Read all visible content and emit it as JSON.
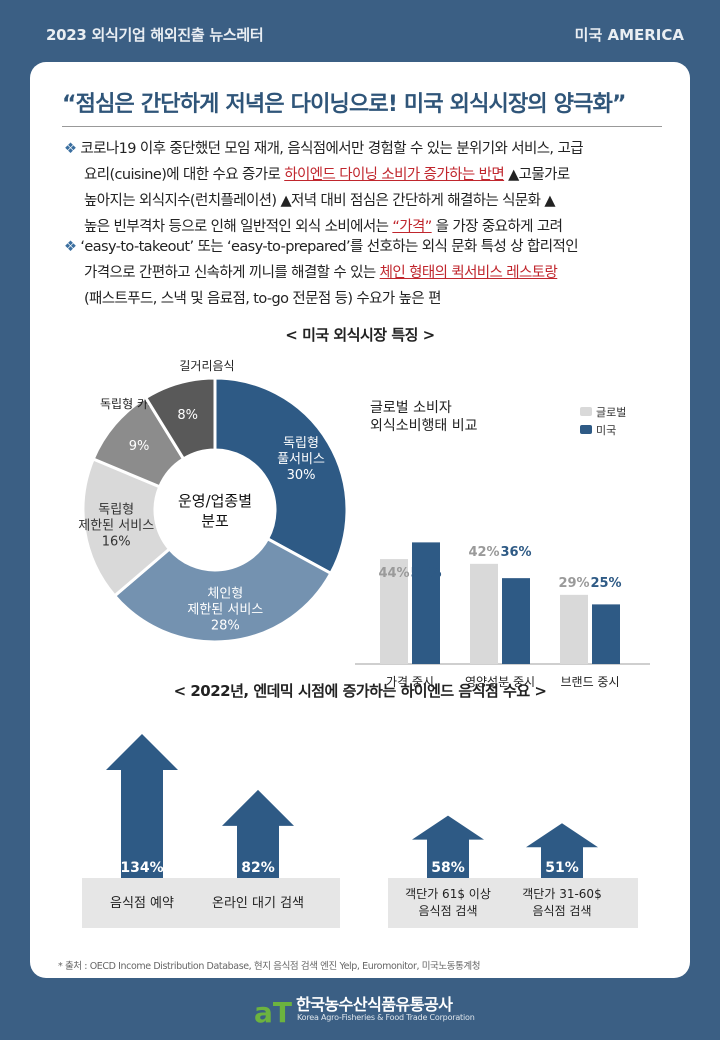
{
  "header": {
    "left": "2023 외식기업 해외진출 뉴스레터",
    "right": "미국 AMERICA"
  },
  "headline": "“점심은 간단하게 저녁은 다이닝으로! 미국 외식시장의 양극화”",
  "bullets": [
    {
      "mark": "❖",
      "line1_a": "코로나19 이후 중단했던 모임 재개, 음식점에서만 경험할 수 있는 분위기와 서비스, 고급",
      "line2_a": "요리(cuisine)에 대한 수요 증가로 ",
      "line2_hl": "하이엔드 다이닝 소비가 증가하는 반면",
      "line2_b": " ▲고물가로",
      "line3_a": "높아지는 외식지수(런치플레이션) ▲저녁 대비 점심은 간단하게 해결하는 식문화 ▲",
      "line4_a": "높은 빈부격차 등으로 인해 일반적인 외식 소비에서는 ",
      "line4_hl": "“가격”",
      "line4_b": " 을 가장 중요하게 고려"
    },
    {
      "mark": "❖",
      "line1_a": "‘easy-to-takeout’ 또는 ‘easy-to-prepared’를 선호하는 외식 문화 특성 상 합리적인",
      "line2_a": "가격으로 간편하고 신속하게 끼니를 해결할 수 있는 ",
      "line2_hl": "체인 형태의 퀵서비스 레스토랑",
      "line3_a": "(패스트푸드, 스낵 및 음료점, to-go 전문점 등) 수요가 높은 편"
    }
  ],
  "section1_title": "< 미국 외식시장 특징 >",
  "donut": {
    "center_line1": "운영/업종별",
    "center_line2": "분포",
    "outer_label": "길거리음식",
    "slices": [
      {
        "key": "indep_full",
        "line1": "독립형",
        "line2": "풀서비스",
        "value_label": "30%",
        "value": 30,
        "color": "#2e5a85",
        "text_color": "#ffffff"
      },
      {
        "key": "chain_limited",
        "line1": "체인형",
        "line2": "제한된 서비스",
        "value_label": "28%",
        "value": 28,
        "color": "#7492b0",
        "text_color": "#ffffff"
      },
      {
        "key": "indep_limited",
        "line1": "독립형",
        "line2": "제한된 서비스",
        "value_label": "16%",
        "value": 16,
        "color": "#d9d9d9",
        "text_color": "#333333"
      },
      {
        "key": "indep_cafe",
        "line1": "독립형 카페",
        "line2": "",
        "value_label": "9%",
        "value": 9,
        "color": "#8c8c8c",
        "text_color": "#ffffff"
      },
      {
        "key": "street",
        "line1": "",
        "line2": "",
        "value_label": "8%",
        "value": 8,
        "color": "#595959",
        "text_color": "#ffffff"
      }
    ]
  },
  "chart_data": {
    "type": "bar",
    "title": "글로벌 소비자 외식소비행태 비교",
    "title_line1": "글로벌 소비자",
    "title_line2": "외식소비행태 비교",
    "categories": [
      "가격 중시",
      "영양성분 중시",
      "브랜드 중시"
    ],
    "series": [
      {
        "name": "글로벌",
        "values": [
          44,
          42,
          29
        ],
        "labels": [
          "44%",
          "42%",
          "29%"
        ],
        "color": "#d9d9d9",
        "label_color": "#9a9a9a"
      },
      {
        "name": "미국",
        "values": [
          51,
          36,
          25
        ],
        "labels": [
          "51%",
          "36%",
          "25%"
        ],
        "color": "#2e5a85",
        "label_color": "#2e5a85"
      }
    ],
    "ylim": [
      0,
      60
    ],
    "legend_position": "top-right",
    "grid": false
  },
  "section2_title": "< 2022년, 엔데믹 시점에 증가하는 하이엔드 음식점 수요 >",
  "arrows": [
    {
      "key": "reservation",
      "value": 134,
      "label": "134%",
      "caption1": "음식점 예약",
      "caption2": ""
    },
    {
      "key": "waitlist",
      "value": 82,
      "label": "82%",
      "caption1": "온라인 대기 검색",
      "caption2": ""
    },
    {
      "key": "over61",
      "value": 58,
      "label": "58%",
      "caption1": "객단가 61$ 이상",
      "caption2": "음식점 검색"
    },
    {
      "key": "31to60",
      "value": 51,
      "label": "51%",
      "caption1": "객단가 31-60$",
      "caption2": "음식점 검색"
    }
  ],
  "source": "* 출처 : OECD Income Distribution Database, 현지 음식점 검색 엔진 Yelp, Euromonitor, 미국노동통계청",
  "logo": {
    "mark": "aT",
    "name_ko": "한국농수산식품유통공사",
    "name_en": "Korea Agro-Fisheries & Food Trade Corporation"
  },
  "colors": {
    "background": "#3b5f84",
    "accent": "#2e5a85",
    "highlight": "#c0262d"
  }
}
